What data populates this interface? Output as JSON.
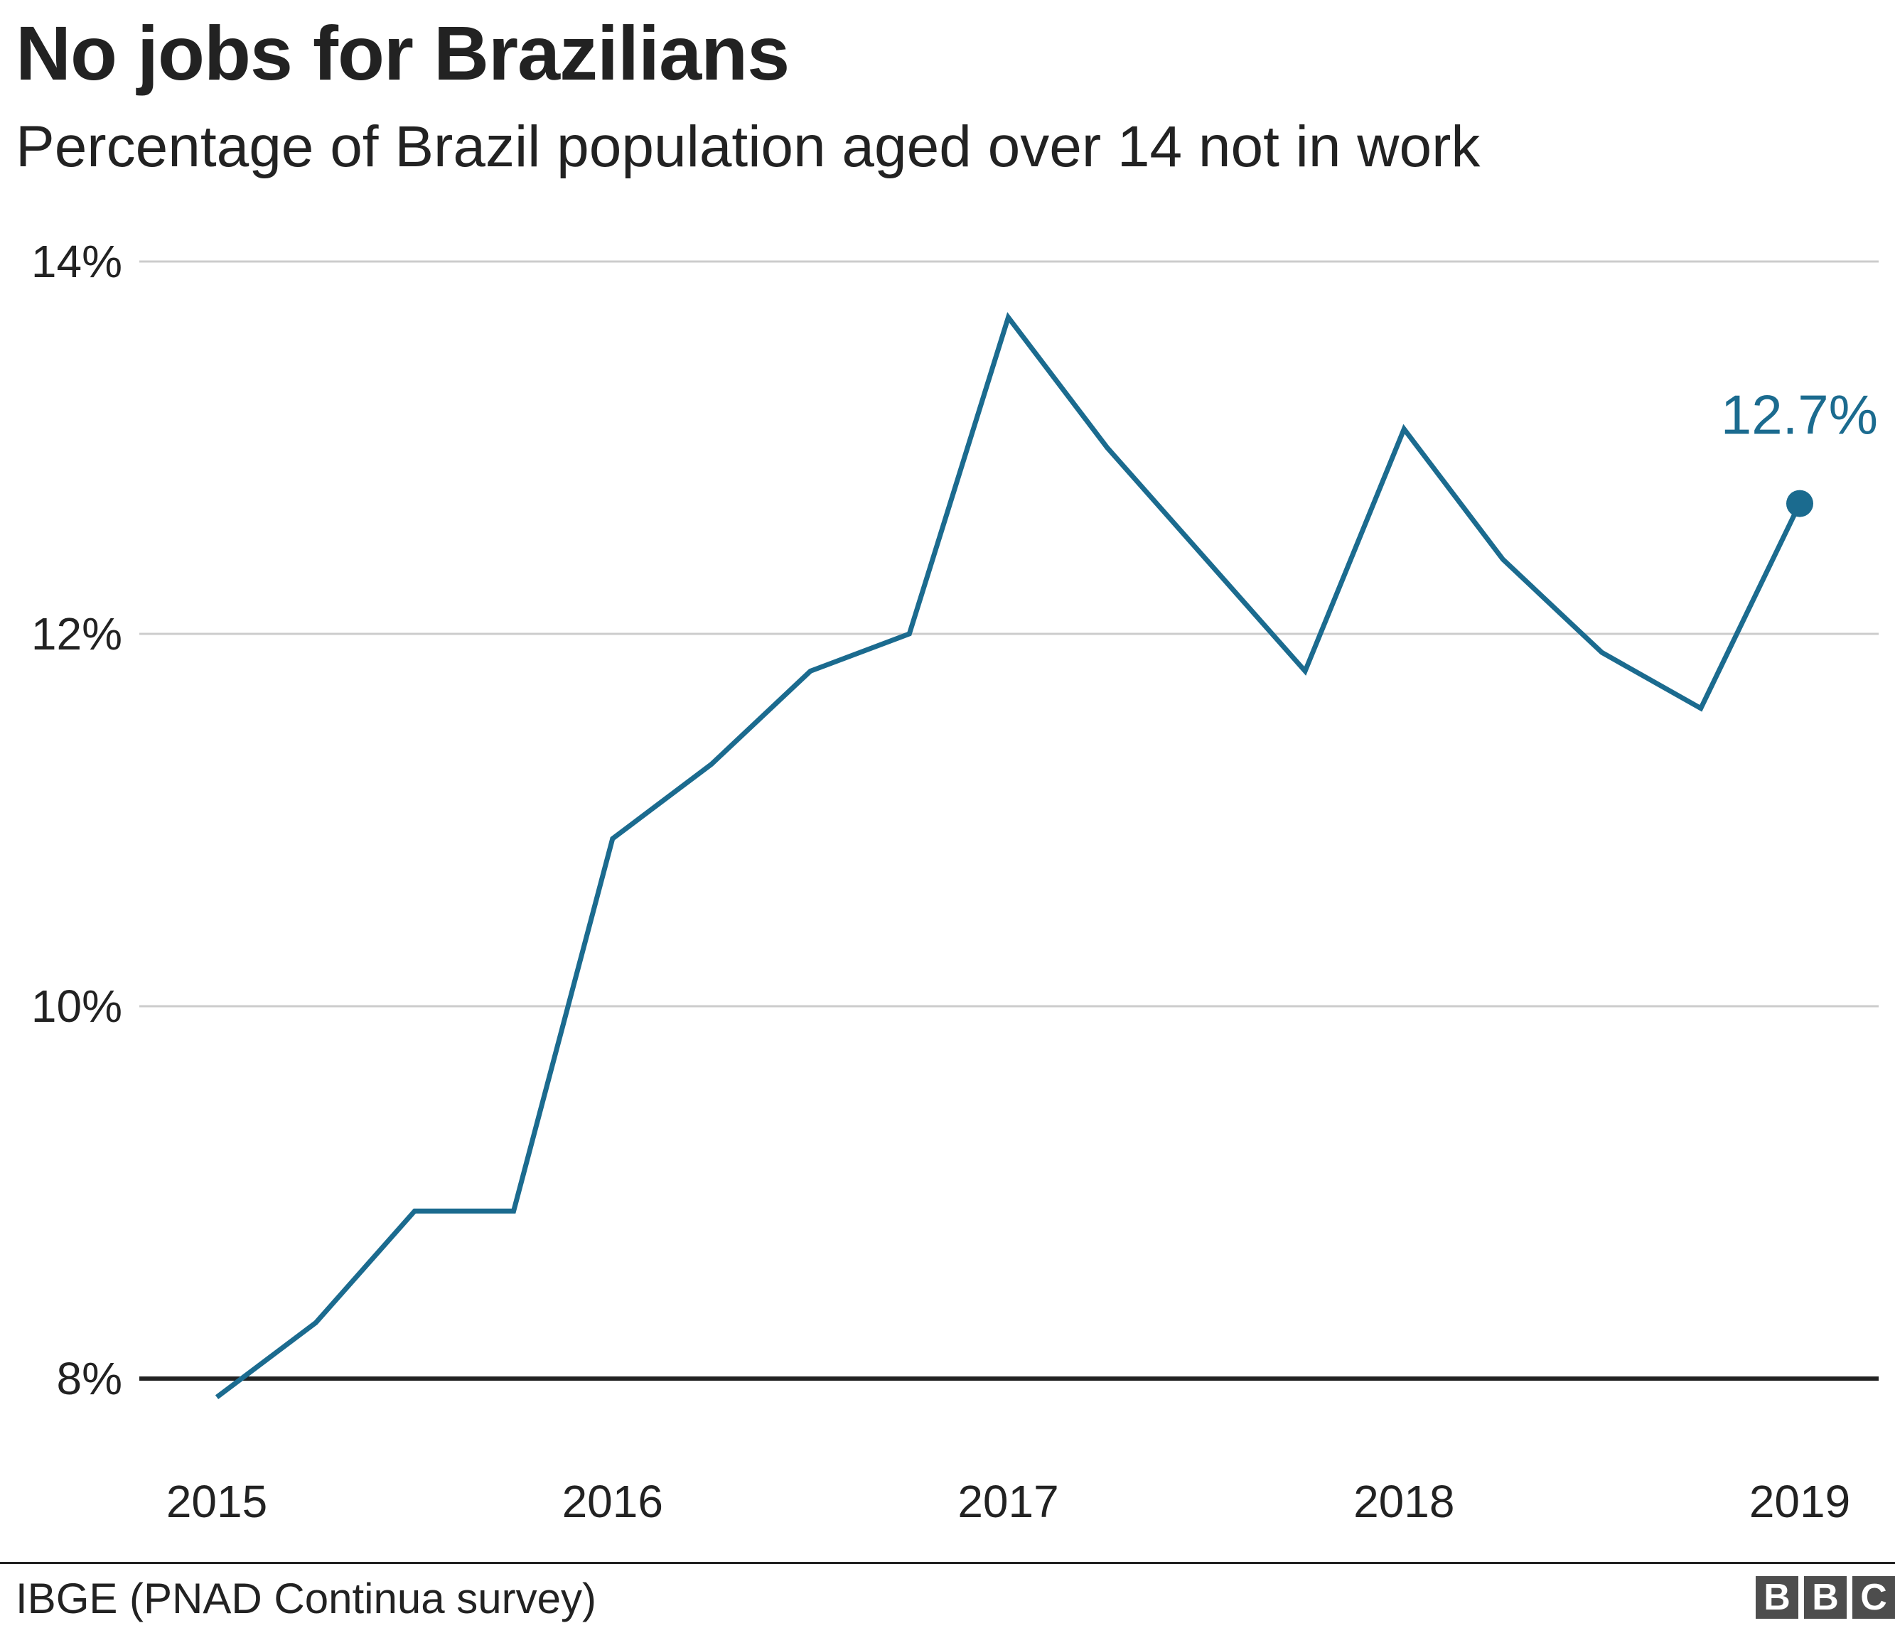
{
  "chart_data": {
    "type": "line",
    "title": "No jobs for Brazilians",
    "subtitle": "Percentage of Brazil population aged over 14 not in work",
    "xlabel": "",
    "ylabel": "",
    "ylim": [
      8,
      14
    ],
    "yticks": [
      8,
      10,
      12,
      14
    ],
    "ytick_labels": [
      "8%",
      "10%",
      "12%",
      "14%"
    ],
    "xticks": [
      2015,
      2016,
      2017,
      2018,
      2019
    ],
    "xtick_labels": [
      "2015",
      "2016",
      "2017",
      "2018",
      "2019"
    ],
    "grid": true,
    "series": [
      {
        "color": "#1b6b8f",
        "x": [
          2015.0,
          2015.25,
          2015.5,
          2015.75,
          2016.0,
          2016.25,
          2016.5,
          2016.75,
          2017.0,
          2017.25,
          2017.5,
          2017.75,
          2018.0,
          2018.25,
          2018.5,
          2018.75,
          2019.0
        ],
        "values": [
          7.9,
          8.3,
          8.9,
          8.9,
          10.9,
          11.3,
          11.8,
          12.0,
          13.7,
          13.0,
          12.4,
          11.8,
          13.1,
          12.4,
          11.9,
          11.6,
          12.7
        ]
      }
    ],
    "annotation": {
      "text": "12.7%",
      "x": 2019.0,
      "y": 12.7
    }
  },
  "source": "IBGE (PNAD Continua survey)",
  "logo": {
    "letters": [
      "B",
      "B",
      "C"
    ]
  },
  "colors": {
    "line": "#1b6b8f",
    "grid": "#cccccc",
    "baseline": "#222222",
    "text": "#222222",
    "logo": "#4d4d4d"
  }
}
